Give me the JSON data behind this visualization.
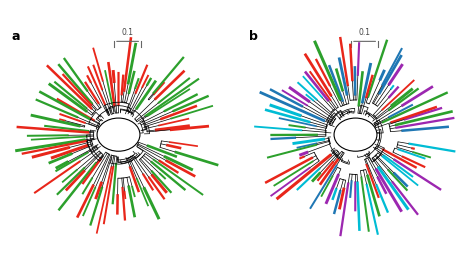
{
  "panel_a_label": "a",
  "panel_b_label": "b",
  "scale_bar_text_a": "0.1",
  "scale_bar_text_b": "0.1",
  "colors_a": [
    "#e8261a",
    "#2ca02c"
  ],
  "colors_b": [
    "#e8261a",
    "#2ca02c",
    "#1f77b4",
    "#00bcd4",
    "#9c27b0"
  ],
  "background": "#ffffff",
  "fig_width": 4.74,
  "fig_height": 2.64,
  "dpi": 100,
  "n_leaves_a": 90,
  "n_leaves_b": 90
}
